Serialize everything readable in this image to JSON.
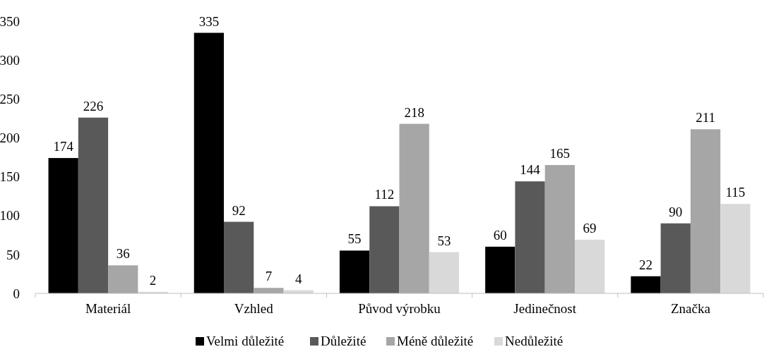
{
  "chart_data": {
    "type": "bar",
    "categories": [
      "Materiál",
      "Vzhled",
      "Původ výrobku",
      "Jedinečnost",
      "Značka"
    ],
    "series": [
      {
        "name": "Velmi důležité",
        "color": "#000000",
        "values": [
          174,
          335,
          55,
          60,
          22
        ]
      },
      {
        "name": "Důležité",
        "color": "#595959",
        "values": [
          226,
          92,
          112,
          144,
          90
        ]
      },
      {
        "name": "Méně důležité",
        "color": "#a6a6a6",
        "values": [
          36,
          7,
          218,
          165,
          211
        ]
      },
      {
        "name": "Nedůležité",
        "color": "#d9d9d9",
        "values": [
          2,
          4,
          53,
          69,
          115
        ]
      }
    ],
    "ylim": [
      0,
      350
    ],
    "yticks": [
      0,
      50,
      100,
      150,
      200,
      250,
      300,
      350
    ],
    "data_labels": true,
    "legend": "bottom",
    "grid": false
  }
}
